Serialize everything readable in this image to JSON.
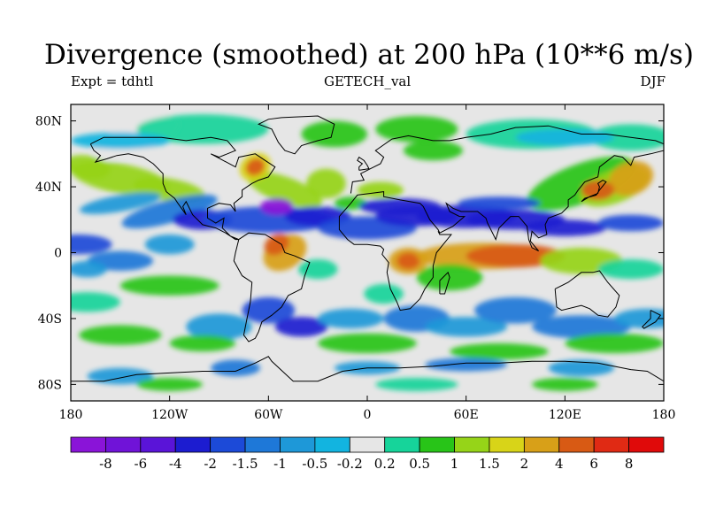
{
  "title": "Divergence (smoothed) at 200 hPa (10**6 m/s)",
  "subtitle_left": "Expt = tdhtl",
  "subtitle_center": "GETECH_val",
  "subtitle_right": "DJF",
  "map": {
    "lon_range": [
      -180,
      180
    ],
    "lat_range": [
      -90,
      90
    ],
    "background_color": "#e6e6e6",
    "x_ticks": [
      {
        "value": -180,
        "label": "180"
      },
      {
        "value": -120,
        "label": "120W"
      },
      {
        "value": -60,
        "label": "60W"
      },
      {
        "value": 0,
        "label": "0"
      },
      {
        "value": 60,
        "label": "60E"
      },
      {
        "value": 120,
        "label": "120E"
      },
      {
        "value": 180,
        "label": "180"
      }
    ],
    "y_ticks": [
      {
        "value": 80,
        "label": "80N"
      },
      {
        "value": 40,
        "label": "40N"
      },
      {
        "value": 0,
        "label": "0"
      },
      {
        "value": -40,
        "label": "40S"
      },
      {
        "value": -80,
        "label": "80S"
      }
    ]
  },
  "colorbar": {
    "colors": [
      "#8a14d8",
      "#7013d8",
      "#5a14d8",
      "#1c1cd0",
      "#1c4ad8",
      "#1e78d8",
      "#1e98d8",
      "#12b4e0",
      "#e6e6e6",
      "#16d49a",
      "#28c418",
      "#96d418",
      "#d8d418",
      "#d8a018",
      "#d85a14",
      "#e02a14",
      "#e00a0a"
    ],
    "labels": [
      "-8",
      "-6",
      "-4",
      "-2",
      "-1.5",
      "-1",
      "-0.5",
      "-0.2",
      "0.2",
      "0.5",
      "1",
      "1.5",
      "2",
      "4",
      "6",
      "8"
    ]
  }
}
